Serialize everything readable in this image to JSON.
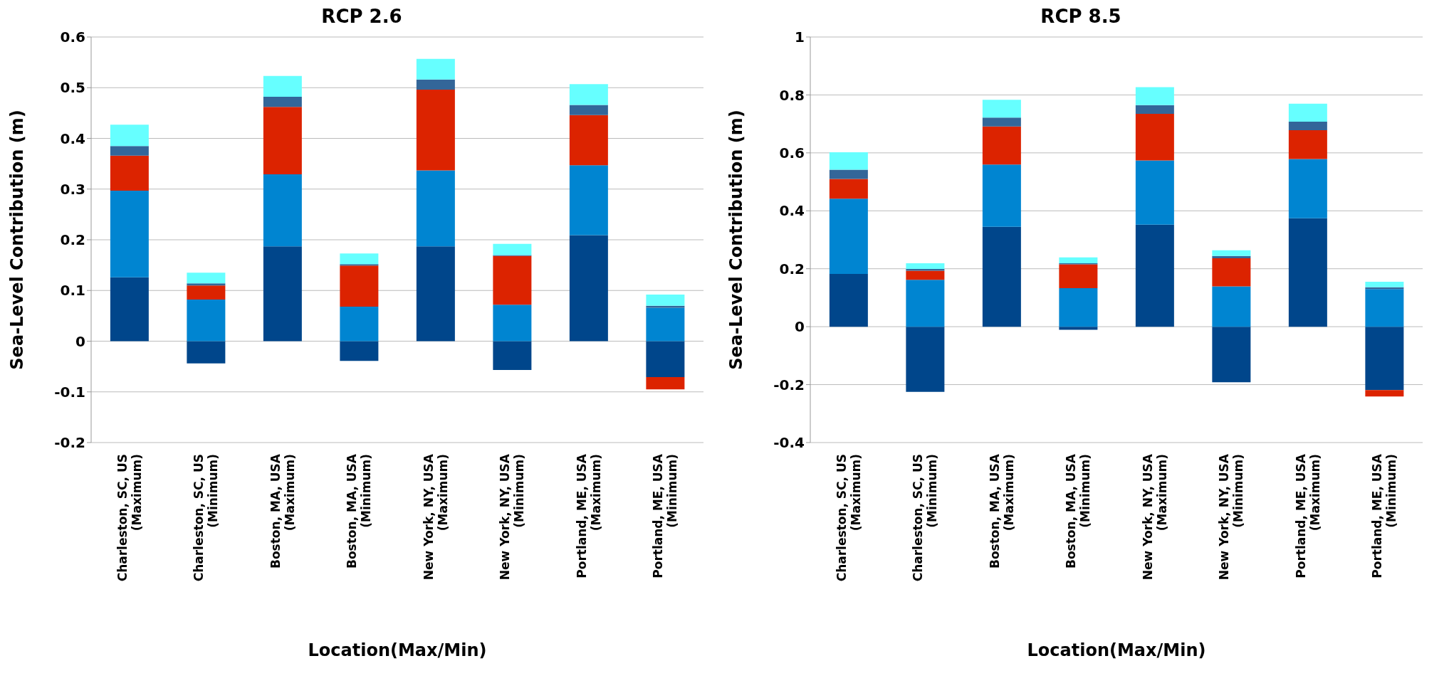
{
  "chart_data": [
    {
      "type": "bar",
      "title": "RCP 2.6",
      "xlabel": "Location(Max/Min)",
      "ylabel": "Sea-Level Contribution (m)",
      "stacked": true,
      "grid": "y",
      "legend": false,
      "categories": [
        "Charleston, SC, US\n(Maximum)",
        "Charleston, SC, US\n(Minimum)",
        "Boston, MA, USA\n(Maximum)",
        "Boston, MA, USA\n(Minimum)",
        "New York, NY, USA\n(Maximum)",
        "New York, NY, USA\n(Minimum)",
        "Portland, ME, USA\n(Maximum)",
        "Portland, ME, USA\n(Minimum)"
      ],
      "ylim": [
        -0.2,
        0.6
      ],
      "yticks": [
        -0.2,
        -0.1,
        0,
        0.1,
        0.2,
        0.3,
        0.4,
        0.5,
        0.6
      ],
      "series": [
        {
          "color": "#00468b",
          "values": [
            0.126,
            -0.044,
            0.187,
            -0.039,
            0.187,
            -0.057,
            0.209,
            -0.071
          ]
        },
        {
          "color": "#0085d1",
          "values": [
            0.171,
            0.082,
            0.142,
            0.068,
            0.15,
            0.072,
            0.138,
            0.066
          ]
        },
        {
          "color": "#dc2300",
          "values": [
            0.069,
            0.028,
            0.133,
            0.081,
            0.159,
            0.096,
            0.099,
            -0.024
          ]
        },
        {
          "color": "#336699",
          "values": [
            0.019,
            0.004,
            0.02,
            0.003,
            0.02,
            0.002,
            0.02,
            0.004
          ]
        },
        {
          "color": "#66ffff",
          "values": [
            0.042,
            0.021,
            0.041,
            0.021,
            0.041,
            0.022,
            0.041,
            0.022
          ]
        }
      ]
    },
    {
      "type": "bar",
      "title": "RCP 8.5",
      "xlabel": "Location(Max/Min)",
      "ylabel": "Sea-Level Contribution (m)",
      "stacked": true,
      "grid": "y",
      "legend": false,
      "categories": [
        "Charleston, SC, US\n(Maximum)",
        "Charleston, SC, US\n(Minimum)",
        "Boston, MA, USA\n(Maximum)",
        "Boston, MA, USA\n(Minimum)",
        "New York, NY, USA\n(Maximum)",
        "New York, NY, USA\n(Minimum)",
        "Portland, ME, USA\n(Maximum)",
        "Portland, ME, USA\n(Minimum)"
      ],
      "ylim": [
        -0.4,
        1
      ],
      "yticks": [
        -0.4,
        -0.2,
        0,
        0.2,
        0.4,
        0.6,
        0.8,
        1
      ],
      "series": [
        {
          "color": "#00468b",
          "values": [
            0.182,
            -0.225,
            0.345,
            -0.011,
            0.352,
            -0.192,
            0.374,
            -0.219
          ]
        },
        {
          "color": "#0085d1",
          "values": [
            0.26,
            0.162,
            0.215,
            0.133,
            0.222,
            0.139,
            0.205,
            0.13
          ]
        },
        {
          "color": "#dc2300",
          "values": [
            0.068,
            0.031,
            0.131,
            0.082,
            0.161,
            0.097,
            0.099,
            -0.022
          ]
        },
        {
          "color": "#336699",
          "values": [
            0.032,
            0.006,
            0.031,
            0.004,
            0.03,
            0.008,
            0.03,
            0.006
          ]
        },
        {
          "color": "#66ffff",
          "values": [
            0.06,
            0.02,
            0.061,
            0.02,
            0.062,
            0.02,
            0.062,
            0.019
          ]
        }
      ]
    }
  ]
}
